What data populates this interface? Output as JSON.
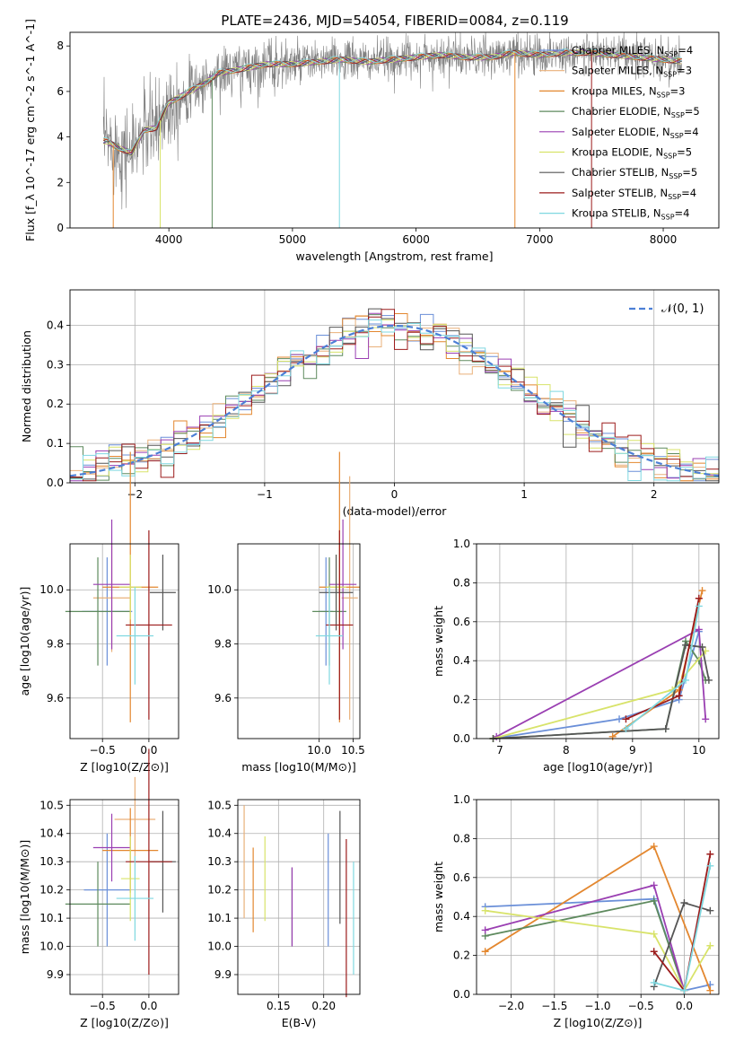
{
  "figure": {
    "title": "PLATE=2436, MJD=54054, FIBERID=0084, z=0.119"
  },
  "chart_data": [
    {
      "id": "spectrum",
      "type": "line",
      "xlabel": "wavelength [Angstrom, rest frame]",
      "ylabel": "Flux [f_λ 10^-17 erg cm^-2 s^-1 A^-1]",
      "xlim": [
        3200,
        8450
      ],
      "ylim": [
        0,
        8.6
      ],
      "xticks": [
        4000,
        5000,
        6000,
        7000,
        8000
      ],
      "yticks": [
        0,
        2,
        4,
        6,
        8
      ],
      "legend": "top-right",
      "data": {
        "x": [
          3500,
          3600,
          3700,
          3800,
          3900,
          4000,
          4100,
          4200,
          4300,
          4400,
          4500,
          4600,
          4800,
          5000,
          5200,
          5400,
          5600,
          5800,
          6000,
          6200,
          6400,
          6600,
          6800,
          7000,
          7200,
          7400,
          7600,
          7800,
          8000,
          8200
        ],
        "y": [
          3.8,
          3.5,
          3.3,
          4.3,
          4.4,
          5.5,
          5.8,
          6.1,
          6.4,
          6.8,
          6.9,
          7.0,
          7.2,
          7.2,
          7.3,
          7.4,
          7.3,
          7.4,
          7.5,
          7.6,
          7.5,
          7.5,
          7.7,
          7.6,
          7.7,
          7.7,
          7.6,
          7.5,
          7.4,
          7.3
        ]
      },
      "series": [
        {
          "name": "Chabrier MILES, N_SSP=4",
          "color": "#6a8fd8"
        },
        {
          "name": "Salpeter MILES, N_SSP=3",
          "color": "#e9b07a"
        },
        {
          "name": "Kroupa MILES, N_SSP=3",
          "color": "#e3872f"
        },
        {
          "name": "Chabrier ELODIE, N_SSP=5",
          "color": "#5e8a5e"
        },
        {
          "name": "Salpeter ELODIE, N_SSP=4",
          "color": "#9a3fb2"
        },
        {
          "name": "Kroupa ELODIE, N_SSP=5",
          "color": "#d8e36a"
        },
        {
          "name": "Chabrier STELIB, N_SSP=5",
          "color": "#555555"
        },
        {
          "name": "Salpeter STELIB, N_SSP=4",
          "color": "#9c1c1c"
        },
        {
          "name": "Kroupa STELIB, N_SSP=4",
          "color": "#7fd8e0"
        }
      ]
    },
    {
      "id": "residuals",
      "type": "line",
      "xlabel": "(data-model)/error",
      "ylabel": "Normed distribution",
      "xlim": [
        -2.5,
        2.5
      ],
      "ylim": [
        0,
        0.49
      ],
      "xticks": [
        -2,
        -1,
        0,
        1,
        2
      ],
      "xticklabels": [
        "−2",
        "−1",
        "0",
        "1",
        "2"
      ],
      "yticks": [
        0.0,
        0.1,
        0.2,
        0.3,
        0.4
      ],
      "legend": "top-right",
      "legend_label": "𝒩(0, 1)",
      "grid": true,
      "bin_width": 0.1
    },
    {
      "id": "age-vs-Z",
      "type": "scatter",
      "xlabel": "Z [log10(Z/Z⊙)]",
      "ylabel": "age [log10(age/yr)]",
      "xlim": [
        -0.85,
        0.32
      ],
      "ylim": [
        9.45,
        10.17
      ],
      "xticks": [
        -0.5,
        0.0
      ],
      "xticklabels": [
        "−0.5",
        "0.0"
      ],
      "yticks": [
        9.6,
        9.8,
        10.0
      ],
      "grid": true,
      "points": [
        {
          "x": -0.45,
          "xerr": 0.27,
          "y": 9.92,
          "yerr": 0.2,
          "color": "#6a8fd8"
        },
        {
          "x": -0.4,
          "xerr": 0.2,
          "y": 9.97,
          "yerr": 0.2,
          "color": "#e9b07a"
        },
        {
          "x": -0.2,
          "xerr": 0.3,
          "y": 10.01,
          "yerr": 0.5,
          "color": "#e3872f"
        },
        {
          "x": -0.55,
          "xerr": 0.35,
          "y": 9.92,
          "yerr": 0.2,
          "color": "#5e8a5e"
        },
        {
          "x": -0.4,
          "xerr": 0.2,
          "y": 10.02,
          "yerr": 0.24,
          "color": "#9a3fb2"
        },
        {
          "x": -0.2,
          "xerr": 0.12,
          "y": 10.01,
          "yerr": 0.12,
          "color": "#d8e36a"
        },
        {
          "x": 0.15,
          "xerr": 0.14,
          "y": 9.99,
          "yerr": 0.14,
          "color": "#555555"
        },
        {
          "x": 0.0,
          "xerr": 0.25,
          "y": 9.87,
          "yerr": 0.35,
          "color": "#9c1c1c"
        },
        {
          "x": -0.15,
          "xerr": 0.2,
          "y": 9.83,
          "yerr": 0.18,
          "color": "#7fd8e0"
        }
      ]
    },
    {
      "id": "age-vs-mass",
      "type": "scatter",
      "xlabel": "mass [log10(M/M⊙)]",
      "xlim": [
        8.8,
        10.6
      ],
      "ylim": [
        9.45,
        10.17
      ],
      "xticks": [
        10.0,
        10.5
      ],
      "xticklabels": [
        "10.0",
        "10.5"
      ],
      "yticks": [
        9.6,
        9.8,
        10.0
      ],
      "grid": true,
      "points": [
        {
          "x": 10.1,
          "xerr": 0.1,
          "y": 9.92,
          "yerr": 0.2,
          "color": "#6a8fd8"
        },
        {
          "x": 10.45,
          "xerr": 0.12,
          "y": 9.97,
          "yerr": 0.45,
          "color": "#e9b07a"
        },
        {
          "x": 10.3,
          "xerr": 0.3,
          "y": 10.01,
          "yerr": 0.5,
          "color": "#e3872f"
        },
        {
          "x": 10.15,
          "xerr": 0.25,
          "y": 9.92,
          "yerr": 0.2,
          "color": "#5e8a5e"
        },
        {
          "x": 10.35,
          "xerr": 0.2,
          "y": 10.02,
          "yerr": 0.24,
          "color": "#9a3fb2"
        },
        {
          "x": 10.25,
          "xerr": 0.15,
          "y": 10.01,
          "yerr": 0.12,
          "color": "#d8e36a"
        },
        {
          "x": 10.25,
          "xerr": 0.25,
          "y": 9.99,
          "yerr": 0.14,
          "color": "#555555"
        },
        {
          "x": 10.3,
          "xerr": 0.2,
          "y": 9.87,
          "yerr": 0.35,
          "color": "#9c1c1c"
        },
        {
          "x": 10.15,
          "xerr": 0.2,
          "y": 9.83,
          "yerr": 0.18,
          "color": "#7fd8e0"
        }
      ]
    },
    {
      "id": "mass-weight-vs-age",
      "type": "line",
      "xlabel": "age [log10(age/yr)]",
      "ylabel": "mass weight",
      "xlim": [
        6.65,
        10.3
      ],
      "ylim": [
        0.0,
        1.0
      ],
      "xticks": [
        7,
        8,
        9,
        10
      ],
      "yticks": [
        0.0,
        0.2,
        0.4,
        0.6,
        0.8,
        1.0
      ],
      "grid": true,
      "series": [
        {
          "color": "#6a8fd8",
          "x": [
            6.9,
            8.8,
            9.7,
            10.0
          ],
          "y": [
            0.0,
            0.1,
            0.2,
            0.55
          ]
        },
        {
          "color": "#e3872f",
          "x": [
            8.7,
            9.7,
            10.05
          ],
          "y": [
            0.01,
            0.25,
            0.76
          ]
        },
        {
          "color": "#5e8a5e",
          "x": [
            6.9,
            9.5,
            9.8,
            10.0,
            10.1
          ],
          "y": [
            0.0,
            0.05,
            0.5,
            0.4,
            0.3
          ]
        },
        {
          "color": "#9a3fb2",
          "x": [
            6.95,
            10.0,
            10.1
          ],
          "y": [
            0.01,
            0.56,
            0.1
          ]
        },
        {
          "color": "#d8e36a",
          "x": [
            6.9,
            9.6,
            10.1
          ],
          "y": [
            0.0,
            0.25,
            0.45
          ]
        },
        {
          "color": "#555555",
          "x": [
            6.9,
            9.5,
            9.8,
            10.05,
            10.15
          ],
          "y": [
            0.0,
            0.05,
            0.48,
            0.47,
            0.3
          ]
        },
        {
          "color": "#9c1c1c",
          "x": [
            8.9,
            9.7,
            10.0
          ],
          "y": [
            0.1,
            0.22,
            0.72
          ]
        },
        {
          "color": "#7fd8e0",
          "x": [
            8.9,
            9.8,
            10.0
          ],
          "y": [
            0.05,
            0.3,
            0.68
          ]
        }
      ]
    },
    {
      "id": "mass-vs-Z",
      "type": "scatter",
      "xlabel": "Z [log10(Z/Z⊙)]",
      "ylabel": "mass [log10(M/M⊙)]",
      "xlim": [
        -0.85,
        0.32
      ],
      "ylim": [
        9.83,
        10.52
      ],
      "xticks": [
        -0.5,
        0.0
      ],
      "xticklabels": [
        "−0.5",
        "0.0"
      ],
      "yticks": [
        9.9,
        10.0,
        10.1,
        10.2,
        10.3,
        10.4,
        10.5
      ],
      "grid": true,
      "points": [
        {
          "x": -0.45,
          "xerr": 0.25,
          "y": 10.2,
          "yerr": 0.2,
          "color": "#6a8fd8"
        },
        {
          "x": -0.15,
          "xerr": 0.22,
          "y": 10.45,
          "yerr": 0.15,
          "color": "#e9b07a"
        },
        {
          "x": -0.2,
          "xerr": 0.3,
          "y": 10.34,
          "yerr": 0.15,
          "color": "#e3872f"
        },
        {
          "x": -0.55,
          "xerr": 0.35,
          "y": 10.15,
          "yerr": 0.15,
          "color": "#5e8a5e"
        },
        {
          "x": -0.4,
          "xerr": 0.2,
          "y": 10.35,
          "yerr": 0.12,
          "color": "#9a3fb2"
        },
        {
          "x": -0.2,
          "xerr": 0.1,
          "y": 10.24,
          "yerr": 0.15,
          "color": "#d8e36a"
        },
        {
          "x": 0.15,
          "xerr": 0.14,
          "y": 10.3,
          "yerr": 0.18,
          "color": "#555555"
        },
        {
          "x": 0.0,
          "xerr": 0.25,
          "y": 10.3,
          "yerr": 0.4,
          "color": "#9c1c1c"
        },
        {
          "x": -0.15,
          "xerr": 0.2,
          "y": 10.17,
          "yerr": 0.15,
          "color": "#7fd8e0"
        }
      ]
    },
    {
      "id": "mass-vs-EBV",
      "type": "scatter",
      "xlabel": "E(B-V)",
      "xlim": [
        0.105,
        0.24
      ],
      "ylim": [
        9.83,
        10.52
      ],
      "xticks": [
        0.15,
        0.2
      ],
      "xticklabels": [
        "0.15",
        "0.20"
      ],
      "yticks": [
        9.9,
        10.0,
        10.1,
        10.2,
        10.3,
        10.4,
        10.5
      ],
      "grid": true,
      "points": [
        {
          "x": 0.205,
          "y": 10.2,
          "yerr": 0.2,
          "color": "#6a8fd8"
        },
        {
          "x": 0.112,
          "y": 10.3,
          "yerr": 0.2,
          "color": "#e9b07a"
        },
        {
          "x": 0.122,
          "y": 10.2,
          "yerr": 0.15,
          "color": "#e3872f"
        },
        {
          "x": 0.165,
          "y": 10.14,
          "yerr": 0.14,
          "color": "#5e8a5e"
        },
        {
          "x": 0.165,
          "y": 10.14,
          "yerr": 0.14,
          "color": "#9a3fb2"
        },
        {
          "x": 0.135,
          "y": 10.24,
          "yerr": 0.15,
          "color": "#d8e36a"
        },
        {
          "x": 0.218,
          "y": 10.28,
          "yerr": 0.2,
          "color": "#555555"
        },
        {
          "x": 0.225,
          "y": 10.1,
          "yerr": 0.28,
          "color": "#9c1c1c"
        },
        {
          "x": 0.233,
          "y": 10.1,
          "yerr": 0.2,
          "color": "#7fd8e0"
        }
      ]
    },
    {
      "id": "mass-weight-vs-Z",
      "type": "line",
      "xlabel": "Z [log10(Z/Z⊙)]",
      "ylabel": "mass weight",
      "xlim": [
        -2.4,
        0.4
      ],
      "ylim": [
        0.0,
        1.0
      ],
      "xticks": [
        -2.0,
        -1.5,
        -1.0,
        -0.5,
        0.0
      ],
      "xticklabels": [
        "−2.0",
        "−1.5",
        "−1.0",
        "−0.5",
        "0.0"
      ],
      "yticks": [
        0.0,
        0.2,
        0.4,
        0.6,
        0.8,
        1.0
      ],
      "grid": true,
      "series": [
        {
          "color": "#6a8fd8",
          "x": [
            -2.3,
            -0.35,
            0.0,
            0.3
          ],
          "y": [
            0.45,
            0.49,
            0.02,
            0.05
          ]
        },
        {
          "color": "#e3872f",
          "x": [
            -2.3,
            -0.35,
            0.3
          ],
          "y": [
            0.22,
            0.76,
            0.02
          ]
        },
        {
          "color": "#5e8a5e",
          "x": [
            -2.3,
            -0.35,
            0.0
          ],
          "y": [
            0.3,
            0.48,
            0.02
          ]
        },
        {
          "color": "#9a3fb2",
          "x": [
            -2.3,
            -0.35,
            0.0
          ],
          "y": [
            0.33,
            0.56,
            0.02
          ]
        },
        {
          "color": "#d8e36a",
          "x": [
            -2.3,
            -0.35,
            0.0,
            0.3
          ],
          "y": [
            0.43,
            0.31,
            0.02,
            0.25
          ]
        },
        {
          "color": "#555555",
          "x": [
            -0.35,
            0.0,
            0.3
          ],
          "y": [
            0.04,
            0.47,
            0.43
          ]
        },
        {
          "color": "#9c1c1c",
          "x": [
            -0.35,
            0.0,
            0.3
          ],
          "y": [
            0.22,
            0.02,
            0.72
          ]
        },
        {
          "color": "#7fd8e0",
          "x": [
            -0.35,
            0.0,
            0.3
          ],
          "y": [
            0.06,
            0.02,
            0.66
          ]
        }
      ]
    }
  ]
}
